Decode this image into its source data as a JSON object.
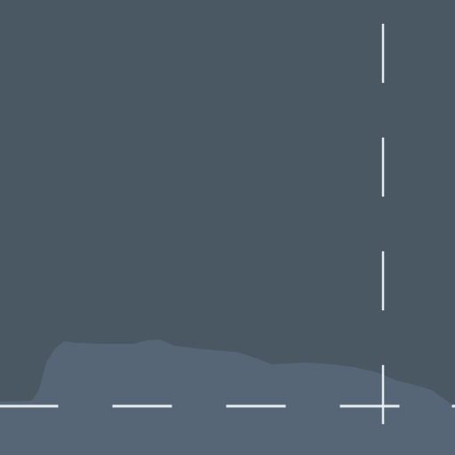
{
  "colors": {
    "background": "#4a5863",
    "silhouette": "#566676",
    "guide": "#e6ebef"
  },
  "icons": {
    "horizontal_guide": "dashed-horizontal-line-icon",
    "vertical_guide": "dashed-vertical-line-icon"
  }
}
